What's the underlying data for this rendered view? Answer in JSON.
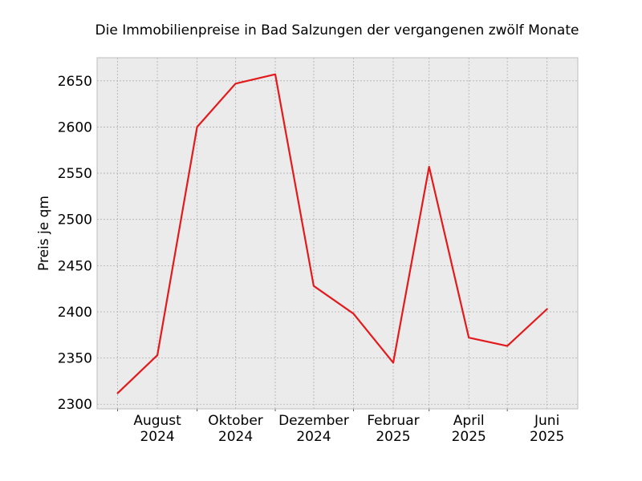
{
  "chart_data": {
    "type": "line",
    "title": "Die Immobilienpreise in Bad Salzungen der vergangenen zwölf Monate",
    "xlabel": "",
    "ylabel": "Preis je qm",
    "x": [
      "2024-07",
      "2024-08",
      "2024-09",
      "2024-10",
      "2024-11",
      "2024-12",
      "2025-01",
      "2025-02",
      "2025-03",
      "2025-04",
      "2025-05",
      "2025-06"
    ],
    "series": [
      {
        "color": "#e31a1c",
        "values": [
          2312,
          2353,
          2600,
          2647,
          2657,
          2428,
          2398,
          2345,
          2557,
          2372,
          2363,
          2403
        ]
      }
    ],
    "x_ticks": [
      {
        "x": "2024-08",
        "line1": "August",
        "line2": "2024"
      },
      {
        "x": "2024-10",
        "line1": "Oktober",
        "line2": "2024"
      },
      {
        "x": "2024-12",
        "line1": "Dezember",
        "line2": "2024"
      },
      {
        "x": "2025-02",
        "line1": "Februar",
        "line2": "2025"
      },
      {
        "x": "2025-04",
        "line1": "April",
        "line2": "2025"
      },
      {
        "x": "2025-06",
        "line1": "Juni",
        "line2": "2025"
      }
    ],
    "y_ticks": [
      2300,
      2350,
      2400,
      2450,
      2500,
      2550,
      2600,
      2650
    ],
    "ylim": [
      2295,
      2675
    ],
    "xlim": [
      "2024-06-15",
      "2025-06-25"
    ],
    "grid": true,
    "colors": {
      "background": "#ebebeb",
      "grid": "#b0b0b0",
      "frame": "#bcbcbc"
    }
  }
}
